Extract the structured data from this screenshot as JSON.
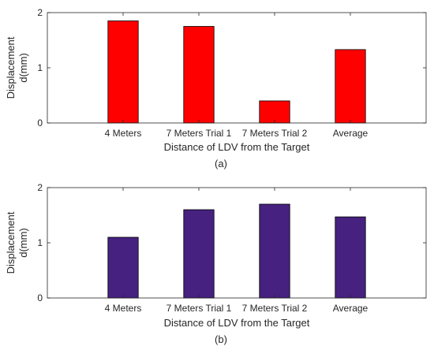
{
  "chart_data": [
    {
      "type": "bar",
      "panel_label": "(a)",
      "categories": [
        "4 Meters",
        "7 Meters Trial 1",
        "7 Meters Trial 2",
        "Average"
      ],
      "values": [
        1.85,
        1.75,
        0.4,
        1.33
      ],
      "xlabel": "Distance of LDV from the Target",
      "ylabel_lines": [
        "Displacement",
        "d(mm)"
      ],
      "ylim": [
        0,
        2
      ],
      "yticks": [
        "0",
        "1",
        "2"
      ],
      "bar_color": "#ff0000",
      "grid": false
    },
    {
      "type": "bar",
      "panel_label": "(b)",
      "categories": [
        "4 Meters",
        "7 Meters Trial 1",
        "7 Meters Trial 2",
        "Average"
      ],
      "values": [
        1.1,
        1.6,
        1.7,
        1.47
      ],
      "xlabel": "Distance of LDV from the Target",
      "ylabel_lines": [
        "Displacement",
        "d(mm)"
      ],
      "ylim": [
        0,
        2
      ],
      "yticks": [
        "0",
        "1",
        "2"
      ],
      "bar_color": "#46217f",
      "grid": false
    }
  ]
}
